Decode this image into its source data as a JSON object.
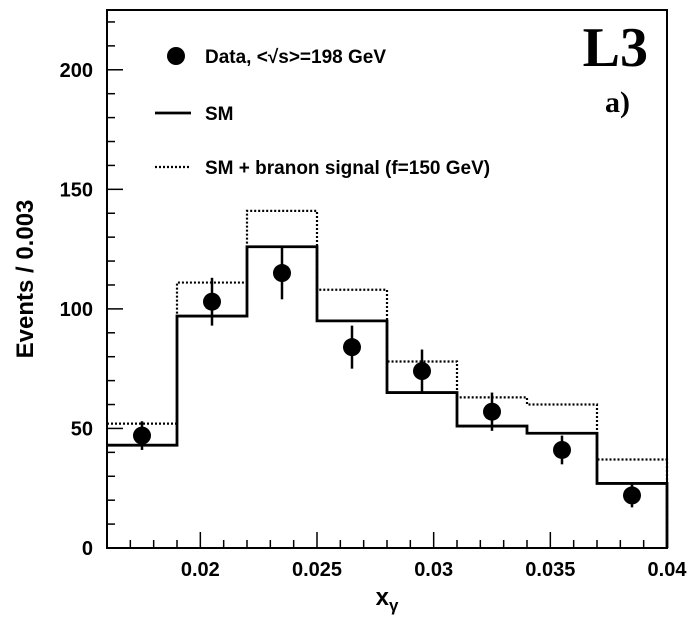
{
  "chart_data": {
    "type": "histogram",
    "title": "L3",
    "panel_label": "a)",
    "xlabel": "x",
    "xlabel_subscript": "γ",
    "ylabel": "Events / 0.003",
    "xlim": [
      0.016,
      0.04
    ],
    "ylim": [
      0,
      225
    ],
    "x_ticks": [
      0.02,
      0.025,
      0.03,
      0.035,
      0.04
    ],
    "x_tick_labels": [
      "0.02",
      "0.025",
      "0.03",
      "0.035",
      "0.04"
    ],
    "y_ticks": [
      0,
      50,
      100,
      150,
      200
    ],
    "y_tick_labels": [
      "0",
      "50",
      "100",
      "150",
      "200"
    ],
    "legend_position": "top-left",
    "bin_edges": [
      0.016,
      0.019,
      0.022,
      0.025,
      0.028,
      0.031,
      0.034,
      0.037,
      0.04
    ],
    "series": [
      {
        "name": "Data, <√s>=198 GeV",
        "kind": "points",
        "x": [
          0.0175,
          0.0205,
          0.0235,
          0.0265,
          0.0295,
          0.0325,
          0.0355,
          0.0385
        ],
        "y": [
          47,
          103,
          115,
          84,
          74,
          57,
          41,
          22
        ],
        "err": [
          6,
          10,
          11,
          9,
          9,
          8,
          6,
          5
        ]
      },
      {
        "name": "SM",
        "kind": "step-solid",
        "values": [
          43,
          97,
          126,
          95,
          65,
          51,
          48,
          27
        ]
      },
      {
        "name": "SM + branon signal (f=150 GeV)",
        "kind": "step-dotted",
        "values": [
          52,
          111,
          141,
          108,
          78,
          63,
          60,
          37
        ]
      }
    ]
  }
}
